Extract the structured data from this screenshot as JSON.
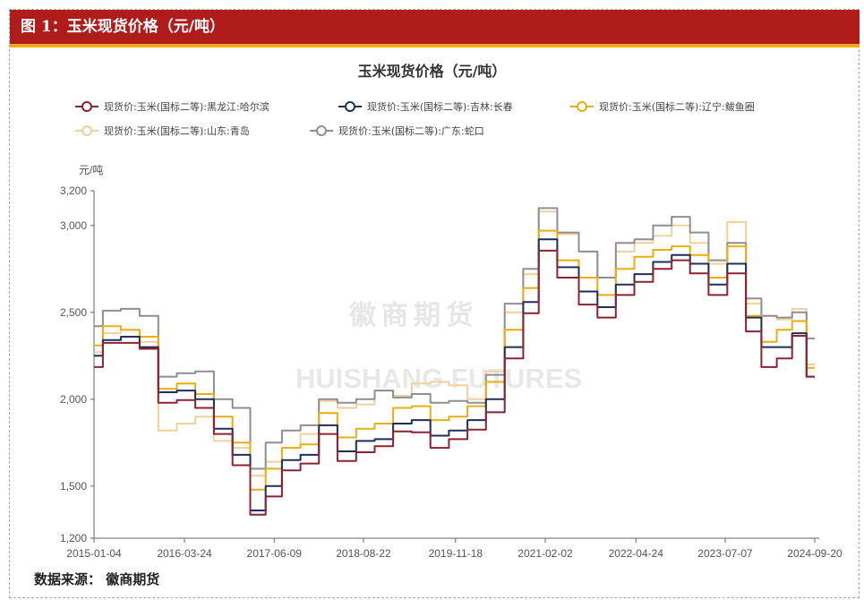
{
  "header": {
    "title": "图 1：玉米现货价格（元/吨）"
  },
  "source": "数据来源：  徽商期货",
  "watermark": {
    "cn": "徽商期货",
    "en": "HUISHANG FUTURES"
  },
  "chart_data": {
    "type": "line",
    "title": "玉米现货价格（元/吨）",
    "ylabel": "元/吨",
    "ylim": [
      1200,
      3200
    ],
    "yticks": [
      "1,200",
      "1,500",
      "2,000",
      "2,500",
      "3,000",
      "3,200"
    ],
    "ytick_values": [
      1200,
      1500,
      2000,
      2500,
      3000,
      3200
    ],
    "xticks": [
      "2015-01-04",
      "2016-03-24",
      "2017-06-09",
      "2018-08-22",
      "2019-11-18",
      "2021-02-02",
      "2022-04-24",
      "2023-07-07",
      "2024-09-20"
    ],
    "x": [
      "2015-01-04",
      "2015-04-01",
      "2015-07-01",
      "2015-10-01",
      "2016-01-01",
      "2016-04-01",
      "2016-07-01",
      "2016-10-01",
      "2017-01-01",
      "2017-03-25",
      "2017-06-01",
      "2017-09-01",
      "2017-12-01",
      "2018-03-01",
      "2018-06-01",
      "2018-09-01",
      "2018-12-01",
      "2019-03-01",
      "2019-06-01",
      "2019-09-01",
      "2019-12-01",
      "2020-03-01",
      "2020-06-01",
      "2020-09-01",
      "2020-12-01",
      "2021-02-01",
      "2021-06-01",
      "2021-09-01",
      "2021-12-01",
      "2022-03-01",
      "2022-06-01",
      "2022-09-01",
      "2022-12-01",
      "2023-03-01",
      "2023-06-01",
      "2023-09-01",
      "2023-12-01",
      "2024-02-01",
      "2024-05-01",
      "2024-07-01",
      "2024-09-20"
    ],
    "series": [
      {
        "name": "现货价:玉米(国标二等):黑龙江:哈尔滨",
        "color": "#8B2332",
        "values": [
          2185,
          2324,
          2324,
          2290,
          1980,
          1995,
          1950,
          1800,
          1620,
          1335,
          1440,
          1590,
          1630,
          1800,
          1645,
          1695,
          1730,
          1815,
          1810,
          1720,
          1770,
          1825,
          1925,
          2235,
          2495,
          2855,
          2700,
          2545,
          2470,
          2600,
          2675,
          2750,
          2800,
          2725,
          2600,
          2725,
          2390,
          2185,
          2235,
          2365,
          2130
        ]
      },
      {
        "name": "现货价:玉米(国标二等):吉林:长春",
        "color": "#1F2F5C",
        "values": [
          2250,
          2340,
          2360,
          2300,
          2040,
          2050,
          2000,
          1830,
          1680,
          1360,
          1500,
          1650,
          1680,
          1850,
          1700,
          1760,
          1770,
          1860,
          1880,
          1790,
          1820,
          1880,
          2000,
          2300,
          2560,
          2920,
          2760,
          2620,
          2530,
          2660,
          2720,
          2790,
          2830,
          2780,
          2660,
          2780,
          2470,
          2300,
          2300,
          2380,
          2130
        ]
      },
      {
        "name": "现货价:玉米(国标二等):辽宁:鲅鱼圈",
        "color": "#EAAE12",
        "values": [
          2310,
          2420,
          2400,
          2360,
          2060,
          2090,
          2030,
          1900,
          1750,
          1480,
          1600,
          1720,
          1740,
          1920,
          1780,
          1830,
          1860,
          1950,
          1960,
          1880,
          1900,
          1960,
          2100,
          2400,
          2640,
          2970,
          2800,
          2700,
          2600,
          2750,
          2820,
          2860,
          2880,
          2830,
          2700,
          2880,
          2480,
          2330,
          2400,
          2450,
          2180
        ]
      },
      {
        "name": "现货价:玉米(国标二等):山东:青岛",
        "color": "#F3CF9A",
        "values": [
          2270,
          2380,
          2400,
          2330,
          1820,
          1860,
          1900,
          1760,
          1720,
          1560,
          1640,
          1720,
          1800,
          1990,
          1950,
          1970,
          2050,
          2020,
          2090,
          2100,
          2080,
          2000,
          2160,
          2500,
          2720,
          3080,
          2950,
          2850,
          2700,
          2850,
          2900,
          2940,
          3000,
          2900,
          2780,
          3020,
          2550,
          2480,
          2460,
          2520,
          2200
        ]
      },
      {
        "name": "现货价:玉米(国标二等):广东:蛇口",
        "color": "#8E8E96",
        "values": [
          2420,
          2510,
          2520,
          2480,
          2130,
          2150,
          2160,
          2000,
          1950,
          1600,
          1750,
          1820,
          1850,
          2000,
          1980,
          2000,
          2050,
          2010,
          2030,
          1980,
          1990,
          1980,
          2140,
          2550,
          2750,
          3100,
          2960,
          2850,
          2700,
          2900,
          2920,
          3000,
          3050,
          2960,
          2800,
          2900,
          2580,
          2480,
          2470,
          2500,
          2350
        ]
      }
    ]
  }
}
